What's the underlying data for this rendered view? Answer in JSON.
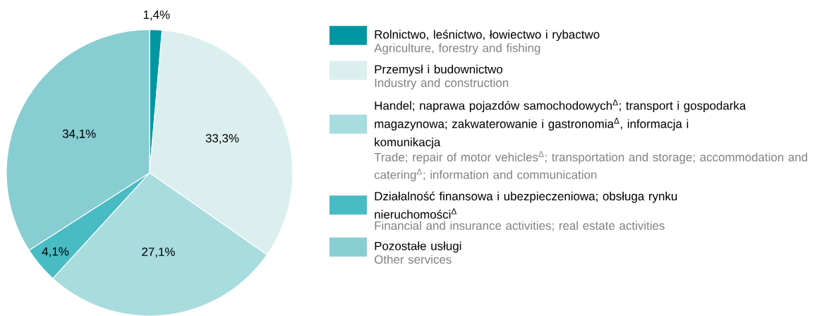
{
  "chart_data": {
    "type": "pie",
    "categories": [
      "Rolnictwo, leśnictwo, łowiectwo i rybactwo",
      "Przemysł i budownictwo",
      "Handel; naprawa pojazdów samochodowych$^{Δ}$; transport i gospodarka magazynowa; zakwaterowanie i gastronomia$^{Δ}$, informacja i komunikacja",
      "Działalność finansowa i ubezpieczeniowa; obsługa rynku nieruchomości$^{Δ}$",
      "Pozostałe usługi"
    ],
    "values": [
      1.4,
      33.3,
      27.1,
      4.1,
      34.1
    ],
    "colors": [
      "#0097a3",
      "#dcefef",
      "#a8dcde",
      "#48bbc3",
      "#88cdd1"
    ],
    "value_labels": [
      "1,4%",
      "33,3%",
      "27,1%",
      "4,1%",
      "34,1%"
    ],
    "legend": "right",
    "annotations": [
      "Agriculture, forestry and fishing",
      "Industry and construction",
      "Trade; repair of motor vehicles$^{Δ}$; transportation and storage; accommodation and catering$^{Δ}$; information and communication",
      "Financial and insurance activities; real estate activities",
      "Other services"
    ]
  }
}
